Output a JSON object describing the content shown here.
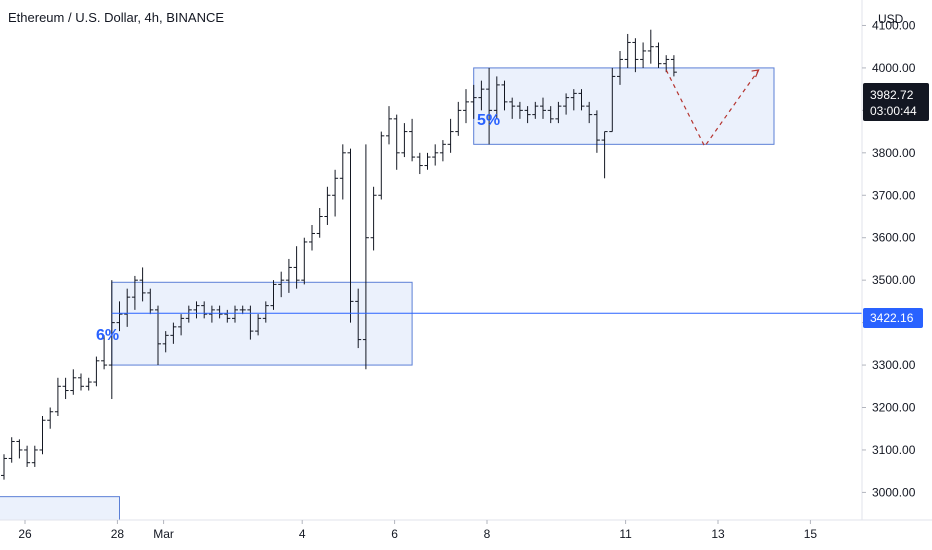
{
  "header": {
    "title": "Ethereum / U.S. Dollar, 4h, BINANCE",
    "currency": "USD"
  },
  "price_tags": {
    "current_price": "3982.72",
    "countdown": "03:00:44",
    "line_price": "3422.16"
  },
  "annotations": {
    "range1_pct": "6%",
    "range2_pct": "5%"
  },
  "colors": {
    "accent": "#2962ff",
    "box_fill": "#e8eefc",
    "box_stroke": "#5b7fd6",
    "candle": "#131722",
    "tag_dark": "#131722",
    "projection": "#b5342f"
  },
  "chart_data": {
    "type": "ohlc",
    "title": "Ethereum / U.S. Dollar, 4h, BINANCE",
    "xlabel": "",
    "ylabel": "USD",
    "ylim": [
      2935,
      4160
    ],
    "y_ticks": [
      3000,
      3100,
      3200,
      3300,
      3400,
      3500,
      3600,
      3700,
      3800,
      3900,
      4000,
      4100
    ],
    "y_tick_labels": [
      "3000.00",
      "3100.00",
      "3200.00",
      "3300.00",
      "3400.00",
      "3500.00",
      "3600.00",
      "3700.00",
      "3800.00",
      "3900.00",
      "4000.00",
      "4100.00"
    ],
    "x_ticks": [
      "26",
      "28",
      "Mar",
      "4",
      "6",
      "8",
      "11",
      "13",
      "15"
    ],
    "x_tick_positions": [
      0,
      12,
      18,
      36,
      48,
      60,
      78,
      90,
      102
    ],
    "candles": [
      [
        3040,
        3090,
        3030,
        3080
      ],
      [
        3080,
        3130,
        3070,
        3120
      ],
      [
        3120,
        3125,
        3080,
        3100
      ],
      [
        3100,
        3110,
        3060,
        3070
      ],
      [
        3070,
        3110,
        3060,
        3100
      ],
      [
        3100,
        3180,
        3090,
        3170
      ],
      [
        3170,
        3200,
        3150,
        3190
      ],
      [
        3190,
        3270,
        3180,
        3250
      ],
      [
        3250,
        3270,
        3220,
        3240
      ],
      [
        3240,
        3290,
        3230,
        3270
      ],
      [
        3270,
        3280,
        3240,
        3250
      ],
      [
        3250,
        3270,
        3240,
        3260
      ],
      [
        3260,
        3320,
        3250,
        3310
      ],
      [
        3310,
        3370,
        3290,
        3300
      ],
      [
        3300,
        3500,
        3220,
        3400
      ],
      [
        3400,
        3450,
        3380,
        3420
      ],
      [
        3420,
        3480,
        3390,
        3460
      ],
      [
        3460,
        3510,
        3430,
        3500
      ],
      [
        3500,
        3530,
        3450,
        3470
      ],
      [
        3470,
        3480,
        3420,
        3430
      ],
      [
        3430,
        3440,
        3300,
        3350
      ],
      [
        3350,
        3380,
        3330,
        3370
      ],
      [
        3370,
        3400,
        3350,
        3390
      ],
      [
        3390,
        3420,
        3370,
        3410
      ],
      [
        3410,
        3440,
        3400,
        3430
      ],
      [
        3430,
        3450,
        3410,
        3440
      ],
      [
        3440,
        3450,
        3410,
        3420
      ],
      [
        3420,
        3440,
        3400,
        3430
      ],
      [
        3430,
        3440,
        3410,
        3420
      ],
      [
        3420,
        3430,
        3400,
        3410
      ],
      [
        3410,
        3440,
        3400,
        3430
      ],
      [
        3430,
        3440,
        3420,
        3430
      ],
      [
        3430,
        3440,
        3360,
        3380
      ],
      [
        3380,
        3420,
        3370,
        3410
      ],
      [
        3410,
        3450,
        3400,
        3440
      ],
      [
        3440,
        3500,
        3430,
        3490
      ],
      [
        3490,
        3520,
        3460,
        3500
      ],
      [
        3500,
        3550,
        3470,
        3530
      ],
      [
        3530,
        3580,
        3480,
        3500
      ],
      [
        3500,
        3600,
        3490,
        3590
      ],
      [
        3590,
        3630,
        3570,
        3610
      ],
      [
        3610,
        3670,
        3600,
        3650
      ],
      [
        3650,
        3720,
        3630,
        3700
      ],
      [
        3700,
        3760,
        3650,
        3740
      ],
      [
        3740,
        3820,
        3690,
        3800
      ],
      [
        3800,
        3810,
        3400,
        3450
      ],
      [
        3450,
        3480,
        3340,
        3360
      ],
      [
        3360,
        3820,
        3290,
        3600
      ],
      [
        3600,
        3720,
        3570,
        3700
      ],
      [
        3700,
        3850,
        3690,
        3840
      ],
      [
        3840,
        3910,
        3820,
        3880
      ],
      [
        3880,
        3890,
        3760,
        3800
      ],
      [
        3800,
        3870,
        3790,
        3850
      ],
      [
        3850,
        3880,
        3780,
        3790
      ],
      [
        3790,
        3800,
        3750,
        3770
      ],
      [
        3770,
        3800,
        3760,
        3790
      ],
      [
        3790,
        3820,
        3770,
        3800
      ],
      [
        3800,
        3830,
        3780,
        3820
      ],
      [
        3820,
        3880,
        3800,
        3850
      ],
      [
        3850,
        3920,
        3840,
        3900
      ],
      [
        3900,
        3950,
        3870,
        3920
      ],
      [
        3920,
        3960,
        3880,
        3930
      ],
      [
        3930,
        3970,
        3900,
        3950
      ],
      [
        3950,
        4000,
        3820,
        3900
      ],
      [
        3900,
        3980,
        3880,
        3960
      ],
      [
        3960,
        3970,
        3900,
        3920
      ],
      [
        3920,
        3930,
        3880,
        3910
      ],
      [
        3910,
        3920,
        3880,
        3900
      ],
      [
        3900,
        3910,
        3870,
        3890
      ],
      [
        3890,
        3920,
        3880,
        3910
      ],
      [
        3910,
        3930,
        3880,
        3900
      ],
      [
        3900,
        3910,
        3870,
        3880
      ],
      [
        3880,
        3920,
        3870,
        3910
      ],
      [
        3910,
        3940,
        3890,
        3930
      ],
      [
        3930,
        3950,
        3900,
        3940
      ],
      [
        3940,
        3950,
        3900,
        3910
      ],
      [
        3910,
        3920,
        3870,
        3890
      ],
      [
        3890,
        3900,
        3800,
        3830
      ],
      [
        3830,
        3850,
        3740,
        3850
      ],
      [
        3850,
        4000,
        3850,
        3980
      ],
      [
        3980,
        4040,
        3960,
        4020
      ],
      [
        4020,
        4080,
        4000,
        4060
      ],
      [
        4060,
        4070,
        3990,
        4020
      ],
      [
        4020,
        4060,
        4000,
        4040
      ],
      [
        4040,
        4090,
        4010,
        4050
      ],
      [
        4050,
        4060,
        4000,
        4010
      ],
      [
        4010,
        4030,
        3990,
        4020
      ],
      [
        4020,
        4030,
        3980,
        3990
      ]
    ],
    "annotations": [
      {
        "type": "range",
        "label": "6%",
        "x_from": 14,
        "x_to": 53,
        "y_from": 3300,
        "y_to": 3495
      },
      {
        "type": "range",
        "label": "5%",
        "x_from": 61,
        "x_to": 100,
        "y_from": 3820,
        "y_to": 4000
      },
      {
        "type": "range",
        "label": "",
        "x_from": -15,
        "x_to": 15,
        "y_from": 2935,
        "y_to": 2990
      },
      {
        "type": "hline",
        "value": 3422.16
      },
      {
        "type": "projection",
        "points": [
          [
            86,
            3995
          ],
          [
            91,
            3815
          ],
          [
            98,
            3995
          ]
        ]
      }
    ],
    "current_price": 3982.72,
    "grid": false,
    "legend": "none"
  }
}
